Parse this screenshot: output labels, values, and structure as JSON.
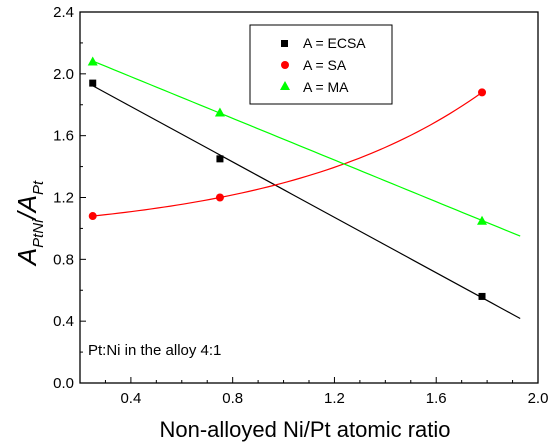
{
  "chart_data": {
    "type": "line",
    "xlabel": "Non-alloyed Ni/Pt atomic ratio",
    "ylabel": {
      "main": "A",
      "sub1": "PtNi",
      "slash": "/A",
      "sub2": "Pt"
    },
    "xlim": [
      0.2,
      2.0
    ],
    "ylim": [
      0.0,
      2.4
    ],
    "xticks": [
      "0.4",
      "0.8",
      "1.2",
      "1.6",
      "2.0"
    ],
    "xtick_values": [
      0.4,
      0.8,
      1.2,
      1.6,
      2.0
    ],
    "yticks": [
      "0.0",
      "0.4",
      "0.8",
      "1.2",
      "1.6",
      "2.0",
      "2.4"
    ],
    "ytick_values": [
      0.0,
      0.4,
      0.8,
      1.2,
      1.6,
      2.0,
      2.4
    ],
    "grid": false,
    "legend_position": "top-right",
    "annotation": "Pt:Ni in the alloy 4:1",
    "series": [
      {
        "name": "A = ECSA",
        "marker": "square",
        "color": "#000000",
        "points": [
          [
            0.25,
            1.94
          ],
          [
            0.75,
            1.45
          ],
          [
            1.78,
            0.56
          ]
        ],
        "fit": "linear",
        "fit_range": [
          0.25,
          1.93
        ]
      },
      {
        "name": "A = SA",
        "marker": "circle",
        "color": "#ff0000",
        "points": [
          [
            0.25,
            1.08
          ],
          [
            0.75,
            1.2
          ],
          [
            1.78,
            1.88
          ]
        ],
        "fit": "exponential",
        "fit_range": [
          0.25,
          1.78
        ]
      },
      {
        "name": "A = MA",
        "marker": "triangle",
        "color": "#00ff00",
        "points": [
          [
            0.25,
            2.08
          ],
          [
            0.75,
            1.75
          ],
          [
            1.78,
            1.05
          ]
        ],
        "fit": "linear",
        "fit_range": [
          0.25,
          1.93
        ]
      }
    ]
  }
}
